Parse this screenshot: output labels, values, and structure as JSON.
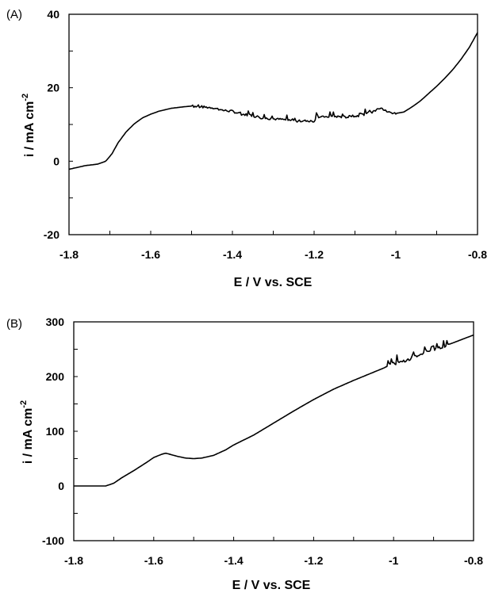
{
  "chart_data": [
    {
      "type": "line",
      "panel_label": "(A)",
      "xlabel": "E / V vs. SCE",
      "ylabel_main": "i / mA cm",
      "ylabel_sup": "-2",
      "xlim": [
        -1.8,
        -0.8
      ],
      "ylim": [
        -20,
        40
      ],
      "x_ticks": [
        -1.8,
        -1.6,
        -1.4,
        -1.2,
        -1.0,
        -0.8
      ],
      "x_tick_labels": [
        "-1.8",
        "-1.6",
        "-1.4",
        "-1.2",
        "-1",
        "-0.8"
      ],
      "y_ticks": [
        -20,
        0,
        20,
        40
      ],
      "y_tick_labels": [
        "-20",
        "0",
        "20",
        "40"
      ],
      "y_minor_step": 10,
      "x_minor_step": 0.1,
      "grid": false,
      "series": [
        {
          "noise": 0.6,
          "noisy_range": [
            -1.5,
            -1.0
          ],
          "x": [
            -1.8,
            -1.76,
            -1.73,
            -1.71,
            -1.695,
            -1.68,
            -1.66,
            -1.64,
            -1.62,
            -1.6,
            -1.58,
            -1.55,
            -1.52,
            -1.5,
            -1.48,
            -1.45,
            -1.42,
            -1.4,
            -1.38,
            -1.36,
            -1.33,
            -1.3,
            -1.28,
            -1.25,
            -1.22,
            -1.2,
            -1.195,
            -1.18,
            -1.15,
            -1.12,
            -1.1,
            -1.08,
            -1.06,
            -1.04,
            -1.02,
            -1.0,
            -0.98,
            -0.96,
            -0.94,
            -0.92,
            -0.9,
            -0.88,
            -0.86,
            -0.84,
            -0.82,
            -0.8
          ],
          "y": [
            -2.2,
            -1.2,
            -0.8,
            0.0,
            2.0,
            5.0,
            8.0,
            10.2,
            11.8,
            12.8,
            13.6,
            14.4,
            14.8,
            15.0,
            14.8,
            14.6,
            13.8,
            13.6,
            12.8,
            12.6,
            11.8,
            11.5,
            11.4,
            11.0,
            10.8,
            10.9,
            12.0,
            12.0,
            12.2,
            12.0,
            12.2,
            12.6,
            13.2,
            14.6,
            13.4,
            13.0,
            13.4,
            14.8,
            16.4,
            18.4,
            20.4,
            22.6,
            25.0,
            27.8,
            31.0,
            35.0
          ]
        }
      ]
    },
    {
      "type": "line",
      "panel_label": "(B)",
      "xlabel": "E / V vs. SCE",
      "ylabel_main": "i / mA cm",
      "ylabel_sup": "-2",
      "xlim": [
        -1.8,
        -0.8
      ],
      "ylim": [
        -100,
        300
      ],
      "x_ticks": [
        -1.8,
        -1.6,
        -1.4,
        -1.2,
        -1.0,
        -0.8
      ],
      "x_tick_labels": [
        "-1.8",
        "-1.6",
        "-1.4",
        "-1.2",
        "-1",
        "-0.8"
      ],
      "y_ticks": [
        -100,
        0,
        100,
        200,
        300
      ],
      "y_tick_labels": [
        "-100",
        "0",
        "100",
        "200",
        "300"
      ],
      "y_minor_step": 50,
      "x_minor_step": 0.1,
      "grid": false,
      "series": [
        {
          "noise": 6,
          "noisy_range": [
            -1.02,
            -0.86
          ],
          "x": [
            -1.8,
            -1.76,
            -1.72,
            -1.7,
            -1.68,
            -1.65,
            -1.62,
            -1.6,
            -1.58,
            -1.57,
            -1.56,
            -1.54,
            -1.52,
            -1.5,
            -1.48,
            -1.45,
            -1.42,
            -1.4,
            -1.35,
            -1.3,
            -1.25,
            -1.2,
            -1.15,
            -1.1,
            -1.05,
            -1.0,
            -0.95,
            -0.9,
            -0.85,
            -0.8
          ],
          "y": [
            0,
            0,
            0,
            5,
            15,
            28,
            42,
            52,
            58,
            60,
            58,
            54,
            51,
            50,
            51,
            56,
            66,
            75,
            93,
            115,
            137,
            158,
            177,
            193,
            208,
            223,
            235,
            248,
            262,
            276
          ]
        }
      ]
    }
  ]
}
